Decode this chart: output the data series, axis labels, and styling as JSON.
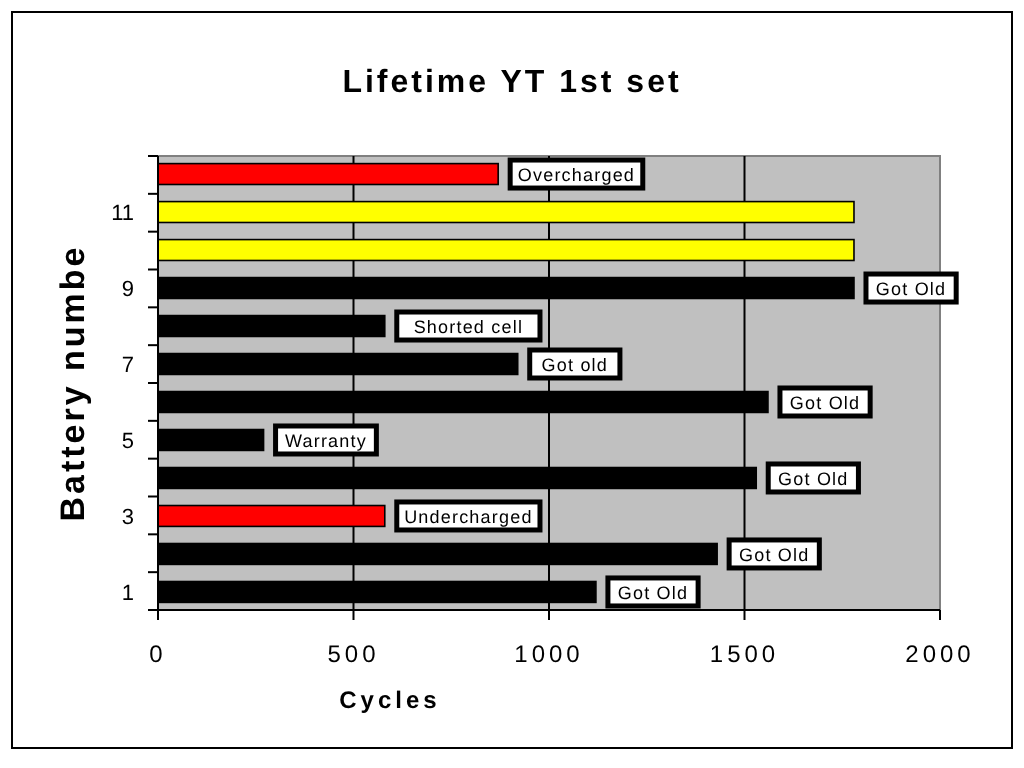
{
  "chart_data": {
    "type": "bar",
    "orientation": "horizontal",
    "title": "Lifetime YT 1st set",
    "xlabel": "Cycles",
    "ylabel": "Battery numbe",
    "categories": [
      null,
      "11",
      null,
      "9",
      null,
      "7",
      null,
      "5",
      null,
      "3",
      null,
      "1"
    ],
    "values": [
      870,
      1780,
      1780,
      1780,
      580,
      920,
      1560,
      270,
      1530,
      580,
      1430,
      1120
    ],
    "colors": [
      "#ff0000",
      "#ffff00",
      "#ffff00",
      "#000000",
      "#000000",
      "#000000",
      "#000000",
      "#000000",
      "#000000",
      "#ff0000",
      "#000000",
      "#000000"
    ],
    "value_labels": [
      "Overcharged",
      null,
      null,
      "Got Old",
      "Shorted cell",
      "Got old",
      "Got Old",
      "Warranty",
      "Got Old",
      "Undercharged",
      "Got Old",
      "Got Old"
    ],
    "xlim": [
      0,
      2000
    ],
    "xticks": [
      0,
      500,
      1000,
      1500,
      2000
    ],
    "grid": "x"
  }
}
